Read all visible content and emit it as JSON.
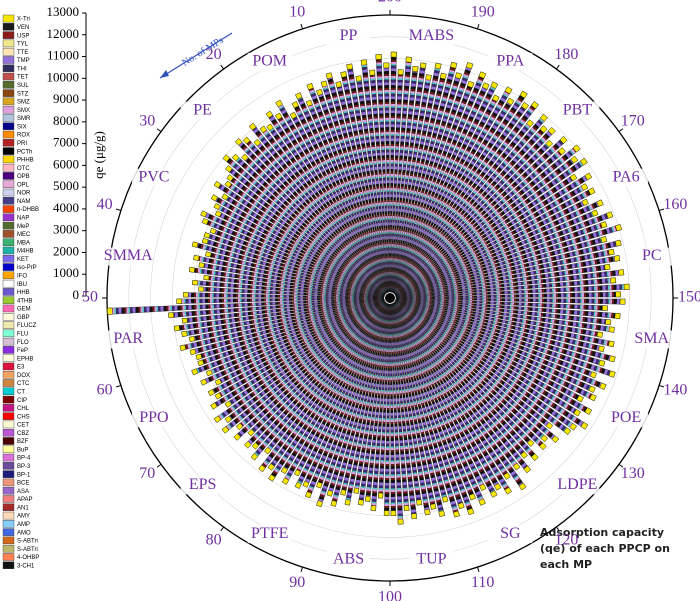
{
  "chart_data": {
    "type": "radial-bar",
    "ylabel": "qe (μg/g)",
    "ylim": [
      0,
      13000
    ],
    "yticks": [
      0,
      1000,
      2000,
      3000,
      4000,
      5000,
      6000,
      7000,
      8000,
      9000,
      10000,
      11000,
      12000,
      13000
    ],
    "xlim": [
      0,
      200
    ],
    "xticks": [
      10,
      20,
      30,
      40,
      50,
      60,
      70,
      80,
      90,
      100,
      110,
      120,
      130,
      140,
      150,
      160,
      170,
      180,
      190,
      200
    ],
    "annotation": "No. of MPs",
    "note": [
      "Adsorption capacity",
      "(qe) of each PPCP on",
      "each MP"
    ],
    "grid": true,
    "series": [
      {
        "name": "PP",
        "values": [
          10800,
          11200,
          10500,
          11000,
          10300,
          10900,
          10600,
          10200,
          10700,
          10400
        ]
      },
      {
        "name": "POM",
        "values": [
          10100,
          10500,
          9800,
          10300,
          10000,
          9600,
          10400,
          9900,
          10200,
          9700
        ]
      },
      {
        "name": "PE",
        "values": [
          9800,
          10200,
          9500,
          9900,
          10100,
          9400,
          9700,
          10000,
          9600,
          9300
        ]
      },
      {
        "name": "PVC",
        "values": [
          9200,
          9600,
          9000,
          9400,
          9100,
          8900,
          9500,
          9300,
          8800,
          9000
        ]
      },
      {
        "name": "SMMA",
        "values": [
          9000,
          9400,
          8700,
          9200,
          8900,
          9300,
          8600,
          9100,
          8800,
          9500
        ]
      },
      {
        "name": "PAR",
        "values": [
          9800,
          13000,
          10200,
          9600,
          10000,
          9700,
          9400,
          9900,
          9500,
          9300
        ]
      },
      {
        "name": "PPO",
        "values": [
          9300,
          9700,
          9100,
          9500,
          8900,
          9400,
          9200,
          9600,
          9000,
          9800
        ]
      },
      {
        "name": "EPS",
        "values": [
          9400,
          9800,
          9200,
          9600,
          9000,
          9500,
          9300,
          9700,
          9100,
          9900
        ]
      },
      {
        "name": "PTFE",
        "values": [
          9600,
          10000,
          9400,
          9800,
          9200,
          9700,
          9500,
          9900,
          9300,
          10100
        ]
      },
      {
        "name": "ABS",
        "values": [
          9500,
          9900,
          9300,
          9700,
          9100,
          9600,
          9400,
          9800,
          9200,
          10000
        ]
      },
      {
        "name": "TUP",
        "values": [
          10000,
          10400,
          9800,
          10200,
          9600,
          10100,
          9900,
          10300,
          9700,
          10500
        ]
      },
      {
        "name": "SG",
        "values": [
          10200,
          10600,
          10000,
          10400,
          9800,
          10300,
          10100,
          10500,
          9900,
          10700
        ]
      },
      {
        "name": "LDPE",
        "values": [
          9800,
          10200,
          9600,
          10000,
          9400,
          9900,
          9700,
          10100,
          9500,
          10300
        ]
      },
      {
        "name": "POE",
        "values": [
          10400,
          10800,
          10200,
          10600,
          10000,
          10500,
          10300,
          10700,
          10100,
          10900
        ]
      },
      {
        "name": "SMA",
        "values": [
          10300,
          10700,
          10100,
          10500,
          9900,
          10400,
          10200,
          10600,
          10000,
          10800
        ]
      },
      {
        "name": "PC",
        "values": [
          10600,
          11000,
          10400,
          10800,
          10200,
          10700,
          10500,
          10900,
          10300,
          11100
        ]
      },
      {
        "name": "PA6",
        "values": [
          10500,
          10900,
          10300,
          10700,
          10100,
          10600,
          10400,
          10800,
          10200,
          11000
        ]
      },
      {
        "name": "PBT",
        "values": [
          10700,
          11100,
          10500,
          10900,
          10300,
          10800,
          10600,
          11000,
          10400,
          11200
        ]
      },
      {
        "name": "PPA",
        "values": [
          10900,
          11300,
          10700,
          11100,
          10500,
          11000,
          10800,
          11200,
          10600,
          11400
        ]
      },
      {
        "name": "MABS",
        "values": [
          10800,
          11200,
          10600,
          11000,
          10400,
          10900,
          10700,
          11100,
          10500,
          11300
        ]
      }
    ],
    "legend": [
      {
        "name": "X-Tri",
        "color": "#f5e600"
      },
      {
        "name": "VEN",
        "color": "#1a1a1a"
      },
      {
        "name": "USP",
        "color": "#8b1a1a"
      },
      {
        "name": "TYL",
        "color": "#f0e68c"
      },
      {
        "name": "TTE",
        "color": "#ffe4b5"
      },
      {
        "name": "TMP",
        "color": "#9370db"
      },
      {
        "name": "THI",
        "color": "#2f2f5f"
      },
      {
        "name": "TET",
        "color": "#c0504d"
      },
      {
        "name": "SUL",
        "color": "#556b2f"
      },
      {
        "name": "STZ",
        "color": "#8b4513"
      },
      {
        "name": "SMZ",
        "color": "#daa520"
      },
      {
        "name": "SMX",
        "color": "#dda0dd"
      },
      {
        "name": "SMR",
        "color": "#b0c4de"
      },
      {
        "name": "SIX",
        "color": "#00008b"
      },
      {
        "name": "ROX",
        "color": "#ff8c00"
      },
      {
        "name": "PRI",
        "color": "#b22222"
      },
      {
        "name": "PCTh",
        "color": "#000000"
      },
      {
        "name": "PHHB",
        "color": "#ffd700"
      },
      {
        "name": "OTC",
        "color": "#ffb6c1"
      },
      {
        "name": "OPB",
        "color": "#4b0082"
      },
      {
        "name": "OPL",
        "color": "#e6a8d7"
      },
      {
        "name": "NOR",
        "color": "#cfcfef"
      },
      {
        "name": "NAM",
        "color": "#483d8b"
      },
      {
        "name": "n-DHBB",
        "color": "#ff4500"
      },
      {
        "name": "NAP",
        "color": "#9932cc"
      },
      {
        "name": "MeP",
        "color": "#556b2f"
      },
      {
        "name": "MEC",
        "color": "#a0522d"
      },
      {
        "name": "MBA",
        "color": "#3cb371"
      },
      {
        "name": "M4HB",
        "color": "#20b2aa"
      },
      {
        "name": "KET",
        "color": "#7b68ee"
      },
      {
        "name": "iso-PrP",
        "color": "#0000cd"
      },
      {
        "name": "IFO",
        "color": "#ffa500"
      },
      {
        "name": "IBU",
        "color": "#ffffff"
      },
      {
        "name": "HHB",
        "color": "#6a5acd"
      },
      {
        "name": "4THB",
        "color": "#9acd32"
      },
      {
        "name": "GEM",
        "color": "#ff69b4"
      },
      {
        "name": "GBP",
        "color": "#fff8dc"
      },
      {
        "name": "FLUCZ",
        "color": "#eee8aa"
      },
      {
        "name": "FLU",
        "color": "#7fffd4"
      },
      {
        "name": "FLO",
        "color": "#d8bfd8"
      },
      {
        "name": "FeP",
        "color": "#8a2be2"
      },
      {
        "name": "EPHB",
        "color": "#ffffe0"
      },
      {
        "name": "E3",
        "color": "#dc143c"
      },
      {
        "name": "DOX",
        "color": "#f4a460"
      },
      {
        "name": "CTC",
        "color": "#cd853f"
      },
      {
        "name": "CT",
        "color": "#00ced1"
      },
      {
        "name": "CIP",
        "color": "#800000"
      },
      {
        "name": "CHL",
        "color": "#c71585"
      },
      {
        "name": "CHS",
        "color": "#ff0000"
      },
      {
        "name": "CET",
        "color": "#fafad2"
      },
      {
        "name": "CBZ",
        "color": "#ba55d3"
      },
      {
        "name": "BZF",
        "color": "#4a0000"
      },
      {
        "name": "BuP",
        "color": "#ffff99"
      },
      {
        "name": "BP-4",
        "color": "#da70d6"
      },
      {
        "name": "BP-3",
        "color": "#6b4c9a"
      },
      {
        "name": "BP-1",
        "color": "#1e1e7a"
      },
      {
        "name": "BCE",
        "color": "#e9967a"
      },
      {
        "name": "ASA",
        "color": "#9966cc"
      },
      {
        "name": "APAP",
        "color": "#f08080"
      },
      {
        "name": "AN1",
        "color": "#a52a2a"
      },
      {
        "name": "AMY",
        "color": "#ffdab9"
      },
      {
        "name": "AMP",
        "color": "#87cefa"
      },
      {
        "name": "AMO",
        "color": "#4169e1"
      },
      {
        "name": "S-ABTri",
        "color": "#d2691e"
      },
      {
        "name": "S-ABTri",
        "color": "#bdb76b"
      },
      {
        "name": "4-OHBP",
        "color": "#ff7f50"
      },
      {
        "name": "3-CH1",
        "color": "#111111"
      }
    ]
  }
}
